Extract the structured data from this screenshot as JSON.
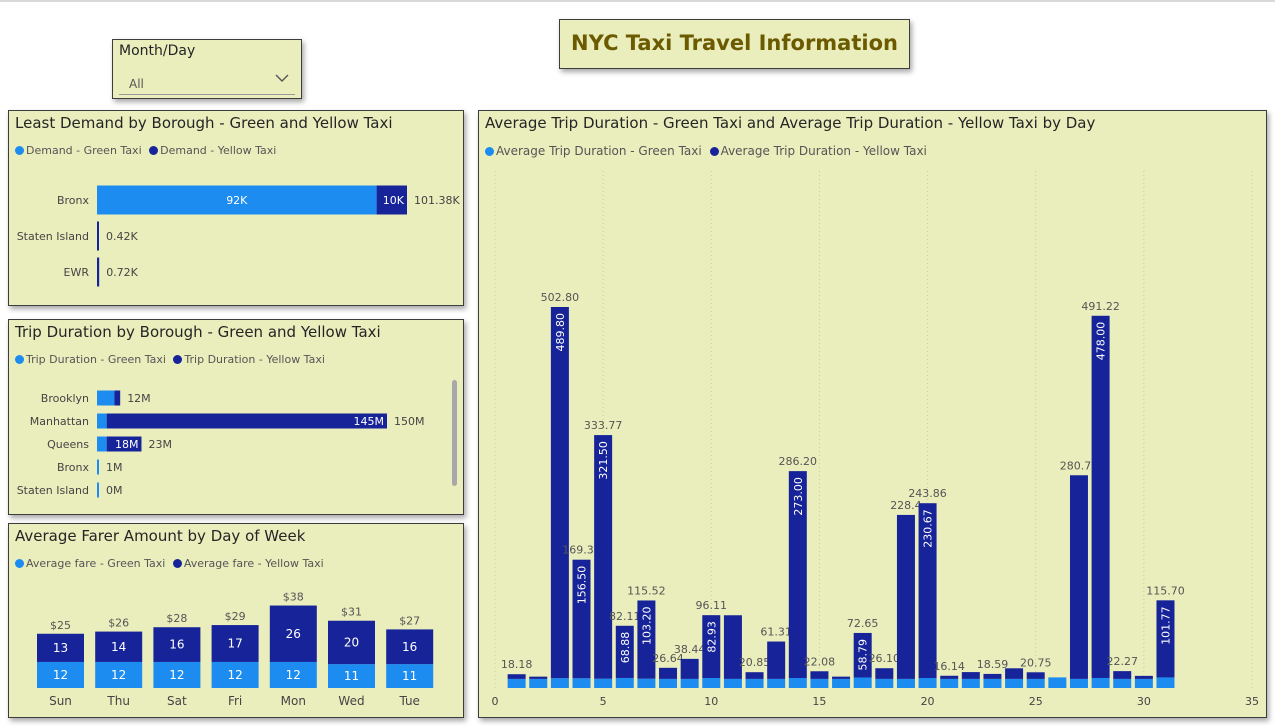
{
  "page_title": "NYC Taxi Travel Information",
  "colors": {
    "panel_bg": "#eaeebd",
    "green_taxi": "#1c8cf0",
    "yellow_taxi": "#172499"
  },
  "slicer": {
    "label": "Month/Day",
    "value": "All",
    "icon": "chevron-down-icon"
  },
  "demand": {
    "title": "Least Demand by Borough - Green and Yellow Taxi",
    "legend": [
      "Demand - Green Taxi",
      "Demand - Yellow Taxi"
    ],
    "rows": [
      {
        "label": "Bronx",
        "green": 92,
        "yellow": 10,
        "green_label": "92K",
        "yellow_label": "10K",
        "total_label": "101.38K"
      },
      {
        "label": "Staten Island",
        "green": 0,
        "yellow": 0.42,
        "green_label": "",
        "yellow_label": "",
        "total_label": "0.42K"
      },
      {
        "label": "EWR",
        "green": 0,
        "yellow": 0.72,
        "green_label": "",
        "yellow_label": "",
        "total_label": "0.72K"
      }
    ]
  },
  "trip_duration": {
    "title": "Trip Duration by Borough - Green and Yellow Taxi",
    "legend": [
      "Trip Duration - Green Taxi",
      "Trip Duration - Yellow Taxi"
    ],
    "rows": [
      {
        "label": "Brooklyn",
        "green": 9,
        "yellow": 3,
        "green_label": "",
        "yellow_label": "",
        "total_label": "12M"
      },
      {
        "label": "Manhattan",
        "green": 5,
        "yellow": 145,
        "green_label": "",
        "yellow_label": "145M",
        "total_label": "150M"
      },
      {
        "label": "Queens",
        "green": 5,
        "yellow": 18,
        "green_label": "",
        "yellow_label": "18M",
        "total_label": "23M"
      },
      {
        "label": "Bronx",
        "green": 1,
        "yellow": 0,
        "green_label": "",
        "yellow_label": "",
        "total_label": "1M"
      },
      {
        "label": "Staten Island",
        "green": 0,
        "yellow": 0,
        "green_label": "",
        "yellow_label": "",
        "total_label": "0M"
      }
    ]
  },
  "fare": {
    "title": "Average Farer Amount by Day of Week",
    "legend": [
      "Average fare - Green Taxi",
      "Average fare - Yellow Taxi"
    ],
    "days": [
      {
        "label": "Sun",
        "green": 12,
        "yellow": 13,
        "total_label": "$25"
      },
      {
        "label": "Thu",
        "green": 12,
        "yellow": 14,
        "total_label": "$26"
      },
      {
        "label": "Sat",
        "green": 12,
        "yellow": 16,
        "total_label": "$28"
      },
      {
        "label": "Fri",
        "green": 12,
        "yellow": 17,
        "total_label": "$29"
      },
      {
        "label": "Mon",
        "green": 12,
        "yellow": 26,
        "total_label": "$38"
      },
      {
        "label": "Wed",
        "green": 11,
        "yellow": 20,
        "total_label": "$31"
      },
      {
        "label": "Tue",
        "green": 11,
        "yellow": 16,
        "total_label": "$27"
      }
    ]
  },
  "chart_data": {
    "type": "bar",
    "title": "Average Trip Duration - Green Taxi and Average Trip Duration - Yellow Taxi by Day",
    "legend": [
      "Average Trip Duration - Green Taxi",
      "Average Trip Duration - Yellow Taxi"
    ],
    "xlim": [
      0,
      35
    ],
    "xticks": [
      0,
      5,
      10,
      15,
      20,
      25,
      30,
      35
    ],
    "ylim": [
      0,
      540
    ],
    "grid": true,
    "days": [
      {
        "x": 1,
        "green": 12,
        "yellow": 6.18,
        "total_label": "18.18",
        "yellow_label": ""
      },
      {
        "x": 2,
        "green": 12,
        "yellow": 3,
        "total_label": "",
        "yellow_label": ""
      },
      {
        "x": 3,
        "green": 13,
        "yellow": 489.8,
        "total_label": "502.80",
        "yellow_label": "489.80"
      },
      {
        "x": 4,
        "green": 12.82,
        "yellow": 156.5,
        "total_label": "169.32",
        "yellow_label": "156.50"
      },
      {
        "x": 5,
        "green": 12.27,
        "yellow": 321.5,
        "total_label": "333.77",
        "yellow_label": "321.50"
      },
      {
        "x": 6,
        "green": 13.23,
        "yellow": 68.88,
        "total_label": "82.11",
        "yellow_label": "68.88"
      },
      {
        "x": 7,
        "green": 12.32,
        "yellow": 103.2,
        "total_label": "115.52",
        "yellow_label": "103.20"
      },
      {
        "x": 8,
        "green": 12,
        "yellow": 14.64,
        "total_label": "26.64",
        "yellow_label": ""
      },
      {
        "x": 9,
        "green": 12,
        "yellow": 26.44,
        "total_label": "38.44",
        "yellow_label": ""
      },
      {
        "x": 10,
        "green": 13.18,
        "yellow": 82.93,
        "total_label": "96.11",
        "yellow_label": "82.93"
      },
      {
        "x": 11,
        "green": 12,
        "yellow": 84,
        "total_label": "",
        "yellow_label": ""
      },
      {
        "x": 12,
        "green": 12,
        "yellow": 8.85,
        "total_label": "20.85",
        "yellow_label": ""
      },
      {
        "x": 13,
        "green": 12,
        "yellow": 49.31,
        "total_label": "61.31",
        "yellow_label": ""
      },
      {
        "x": 14,
        "green": 13.2,
        "yellow": 273,
        "total_label": "286.20",
        "yellow_label": "273.00"
      },
      {
        "x": 15,
        "green": 12,
        "yellow": 10.08,
        "total_label": "22.08",
        "yellow_label": ""
      },
      {
        "x": 16,
        "green": 12,
        "yellow": 3,
        "total_label": "",
        "yellow_label": ""
      },
      {
        "x": 17,
        "green": 13.86,
        "yellow": 58.79,
        "total_label": "72.65",
        "yellow_label": "58.79"
      },
      {
        "x": 18,
        "green": 12,
        "yellow": 14.1,
        "total_label": "26.10",
        "yellow_label": ""
      },
      {
        "x": 19,
        "green": 12,
        "yellow": 216.4,
        "total_label": "228.4",
        "yellow_label": ""
      },
      {
        "x": 20,
        "green": 13.19,
        "yellow": 230.67,
        "total_label": "243.86",
        "yellow_label": "230.67"
      },
      {
        "x": 21,
        "green": 12,
        "yellow": 4.14,
        "total_label": "16.14",
        "yellow_label": ""
      },
      {
        "x": 22,
        "green": 12,
        "yellow": 9,
        "total_label": "",
        "yellow_label": ""
      },
      {
        "x": 23,
        "green": 12,
        "yellow": 6.59,
        "total_label": "18.59",
        "yellow_label": ""
      },
      {
        "x": 24,
        "green": 12,
        "yellow": 14,
        "total_label": "",
        "yellow_label": ""
      },
      {
        "x": 25,
        "green": 12,
        "yellow": 8.75,
        "total_label": "20.75",
        "yellow_label": ""
      },
      {
        "x": 26,
        "green": 14,
        "yellow": 0,
        "total_label": "",
        "yellow_label": ""
      },
      {
        "x": 27,
        "green": 12,
        "yellow": 268.75,
        "total_label": "280.75",
        "yellow_label": ""
      },
      {
        "x": 28,
        "green": 13.22,
        "yellow": 478,
        "total_label": "491.22",
        "yellow_label": "478.00"
      },
      {
        "x": 29,
        "green": 12,
        "yellow": 10.27,
        "total_label": "22.27",
        "yellow_label": ""
      },
      {
        "x": 30,
        "green": 12,
        "yellow": 4,
        "total_label": "",
        "yellow_label": ""
      },
      {
        "x": 31,
        "green": 13.93,
        "yellow": 101.77,
        "total_label": "115.70",
        "yellow_label": "101.77"
      }
    ]
  }
}
